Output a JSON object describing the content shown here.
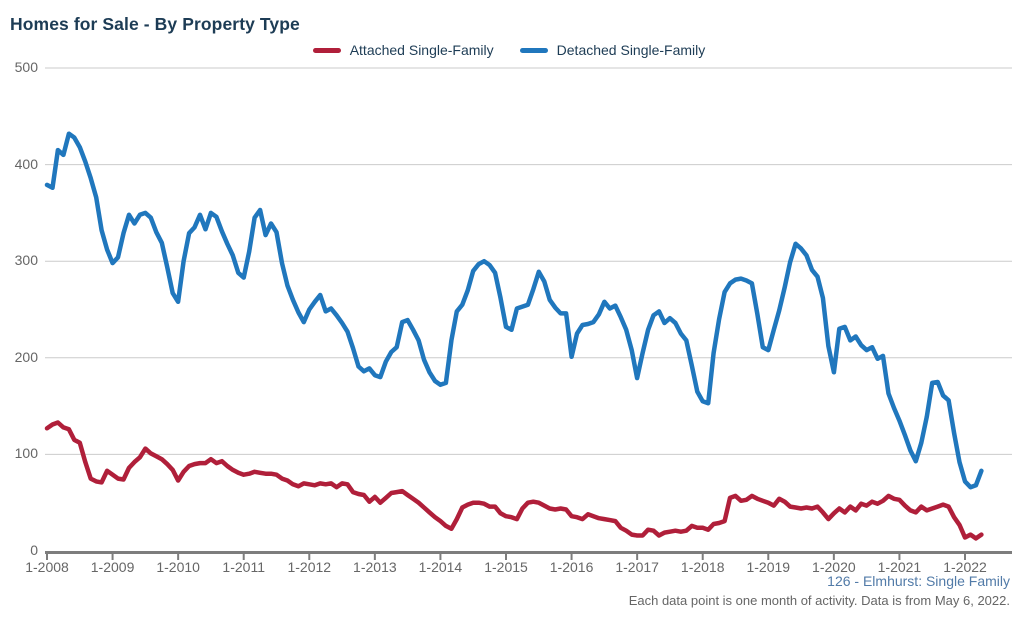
{
  "title": "Homes for Sale - By Property Type",
  "legend": [
    {
      "label": "Attached Single-Family",
      "color": "#b01f3a"
    },
    {
      "label": "Detached Single-Family",
      "color": "#2077bd"
    }
  ],
  "footer": {
    "line1": "126 - Elmhurst: Single Family",
    "line2": "Each data point is one month of activity. Data is from May 6, 2022."
  },
  "chart_data": {
    "type": "line",
    "title": "Homes for Sale - By Property Type",
    "xlabel": "",
    "ylabel": "",
    "x_unit": "month",
    "x_start": "1-2008",
    "x_end": "4-2022",
    "points_per_year": 12,
    "x_tick_labels": [
      "1-2008",
      "1-2009",
      "1-2010",
      "1-2011",
      "1-2012",
      "1-2013",
      "1-2014",
      "1-2015",
      "1-2016",
      "1-2017",
      "1-2018",
      "1-2019",
      "1-2020",
      "1-2021",
      "1-2022"
    ],
    "y_ticks": [
      0,
      100,
      200,
      300,
      400,
      500
    ],
    "ylim": [
      0,
      500
    ],
    "grid": "horizontal",
    "legend_position": "top",
    "series": [
      {
        "name": "Attached Single-Family",
        "color": "#b01f3a",
        "values": [
          127,
          131,
          133,
          128,
          126,
          115,
          112,
          92,
          75,
          72,
          71,
          83,
          79,
          75,
          74,
          86,
          92,
          97,
          106,
          101,
          98,
          95,
          90,
          84,
          73,
          82,
          88,
          90,
          91,
          91,
          95,
          91,
          93,
          88,
          84,
          81,
          79,
          80,
          82,
          81,
          80,
          80,
          79,
          75,
          73,
          69,
          67,
          70,
          69,
          68,
          70,
          69,
          70,
          66,
          70,
          69,
          61,
          59,
          58,
          51,
          56,
          50,
          55,
          60,
          61,
          62,
          58,
          54,
          50,
          45,
          40,
          35,
          31,
          26,
          23,
          33,
          45,
          48,
          50,
          50,
          49,
          46,
          46,
          39,
          36,
          35,
          33,
          44,
          50,
          51,
          50,
          47,
          44,
          43,
          44,
          43,
          36,
          35,
          33,
          38,
          36,
          34,
          33,
          32,
          31,
          24,
          21,
          17,
          16,
          16,
          22,
          21,
          16,
          19,
          20,
          21,
          20,
          21,
          26,
          24,
          24,
          22,
          28,
          29,
          31,
          55,
          57,
          52,
          53,
          57,
          54,
          52,
          50,
          47,
          54,
          51,
          46,
          45,
          44,
          45,
          44,
          46,
          40,
          33,
          39,
          44,
          40,
          46,
          42,
          49,
          47,
          51,
          49,
          52,
          57,
          54,
          53,
          47,
          42,
          40,
          46,
          42,
          44,
          46,
          48,
          46,
          35,
          27,
          14,
          17,
          13,
          17
        ]
      },
      {
        "name": "Detached Single-Family",
        "color": "#2077bd",
        "values": [
          379,
          376,
          415,
          410,
          432,
          428,
          418,
          403,
          386,
          366,
          332,
          312,
          298,
          304,
          329,
          348,
          339,
          348,
          350,
          345,
          330,
          319,
          294,
          267,
          258,
          300,
          329,
          335,
          348,
          333,
          350,
          346,
          331,
          318,
          306,
          288,
          283,
          310,
          345,
          353,
          327,
          339,
          330,
          298,
          275,
          260,
          247,
          237,
          250,
          258,
          265,
          248,
          251,
          244,
          236,
          227,
          210,
          191,
          186,
          189,
          182,
          180,
          196,
          206,
          211,
          237,
          239,
          229,
          218,
          198,
          185,
          176,
          172,
          174,
          218,
          248,
          255,
          270,
          290,
          297,
          300,
          296,
          288,
          262,
          232,
          229,
          251,
          253,
          255,
          271,
          289,
          279,
          260,
          252,
          246,
          246,
          201,
          225,
          234,
          235,
          237,
          245,
          258,
          251,
          254,
          242,
          229,
          208,
          179,
          205,
          229,
          244,
          248,
          236,
          241,
          236,
          225,
          218,
          192,
          165,
          155,
          153,
          205,
          240,
          268,
          277,
          281,
          282,
          280,
          277,
          245,
          211,
          208,
          229,
          249,
          273,
          299,
          318,
          313,
          306,
          291,
          284,
          262,
          212,
          185,
          230,
          232,
          218,
          222,
          213,
          208,
          211,
          199,
          202,
          163,
          148,
          135,
          120,
          104,
          93,
          112,
          139,
          174,
          175,
          161,
          156,
          122,
          92,
          72,
          66,
          68,
          83
        ]
      }
    ]
  }
}
